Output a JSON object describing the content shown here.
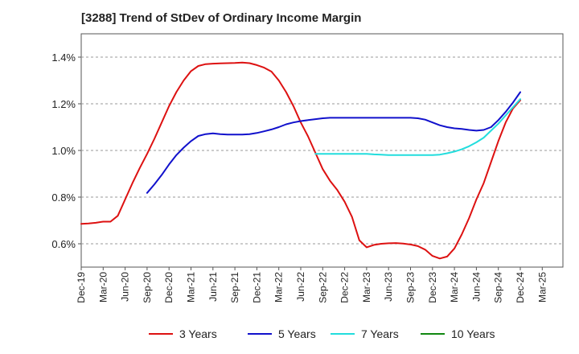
{
  "chart_data": {
    "type": "line",
    "title": "[3288]  Trend of StDev of Ordinary Income Margin",
    "xlabel": "",
    "ylabel": "",
    "x_ticks": [
      "Dec-19",
      "Mar-20",
      "Jun-20",
      "Sep-20",
      "Dec-20",
      "Mar-21",
      "Jun-21",
      "Sep-21",
      "Dec-21",
      "Mar-22",
      "Jun-22",
      "Sep-22",
      "Dec-22",
      "Mar-23",
      "Jun-23",
      "Sep-23",
      "Dec-23",
      "Mar-24",
      "Jun-24",
      "Sep-24",
      "Dec-24",
      "Mar-25"
    ],
    "y_ticks": [
      {
        "value": 0.6,
        "label": "0.6%"
      },
      {
        "value": 0.8,
        "label": "0.8%"
      },
      {
        "value": 1.0,
        "label": "1.0%"
      },
      {
        "value": 1.2,
        "label": "1.2%"
      },
      {
        "value": 1.4,
        "label": "1.4%"
      }
    ],
    "ylim": [
      0.5,
      1.5
    ],
    "grid": "horizontal dashed",
    "legend_position": "bottom",
    "series": [
      {
        "name": "3 Years",
        "color": "#dd1111",
        "x": [
          "2019-12",
          "2020-01",
          "2020-02",
          "2020-03",
          "2020-04",
          "2020-05",
          "2020-06",
          "2020-07",
          "2020-08",
          "2020-09",
          "2020-10",
          "2020-11",
          "2020-12",
          "2021-01",
          "2021-02",
          "2021-03",
          "2021-04",
          "2021-05",
          "2021-06",
          "2021-07",
          "2021-08",
          "2021-09",
          "2021-10",
          "2021-11",
          "2021-12",
          "2022-01",
          "2022-02",
          "2022-03",
          "2022-04",
          "2022-05",
          "2022-06",
          "2022-07",
          "2022-08",
          "2022-09",
          "2022-10",
          "2022-11",
          "2022-12",
          "2023-01",
          "2023-02",
          "2023-03",
          "2023-04",
          "2023-05",
          "2023-06",
          "2023-07",
          "2023-08",
          "2023-09",
          "2023-10",
          "2023-11",
          "2023-12",
          "2024-01",
          "2024-02",
          "2024-03",
          "2024-04",
          "2024-05",
          "2024-06",
          "2024-07",
          "2024-08",
          "2024-09",
          "2024-10",
          "2024-11",
          "2024-12"
        ],
        "values": [
          0.685,
          0.687,
          0.69,
          0.695,
          0.695,
          0.72,
          0.79,
          0.86,
          0.925,
          0.985,
          1.05,
          1.12,
          1.19,
          1.25,
          1.3,
          1.34,
          1.362,
          1.37,
          1.372,
          1.373,
          1.374,
          1.375,
          1.377,
          1.374,
          1.366,
          1.355,
          1.338,
          1.3,
          1.25,
          1.19,
          1.12,
          1.06,
          0.99,
          0.92,
          0.87,
          0.83,
          0.78,
          0.715,
          0.615,
          0.585,
          0.595,
          0.6,
          0.602,
          0.603,
          0.601,
          0.597,
          0.59,
          0.575,
          0.548,
          0.537,
          0.545,
          0.58,
          0.64,
          0.71,
          0.79,
          0.86,
          0.95,
          1.04,
          1.12,
          1.18,
          1.215
        ]
      },
      {
        "name": "5 Years",
        "color": "#1111cc",
        "x": [
          "2020-09",
          "2020-10",
          "2020-11",
          "2020-12",
          "2021-01",
          "2021-02",
          "2021-03",
          "2021-04",
          "2021-05",
          "2021-06",
          "2021-07",
          "2021-08",
          "2021-09",
          "2021-10",
          "2021-11",
          "2021-12",
          "2022-01",
          "2022-02",
          "2022-03",
          "2022-04",
          "2022-05",
          "2022-06",
          "2022-07",
          "2022-08",
          "2022-09",
          "2022-10",
          "2022-11",
          "2022-12",
          "2023-01",
          "2023-02",
          "2023-03",
          "2023-04",
          "2023-05",
          "2023-06",
          "2023-07",
          "2023-08",
          "2023-09",
          "2023-10",
          "2023-11",
          "2023-12",
          "2024-01",
          "2024-02",
          "2024-03",
          "2024-04",
          "2024-05",
          "2024-06",
          "2024-07",
          "2024-08",
          "2024-09",
          "2024-10",
          "2024-11",
          "2024-12"
        ],
        "values": [
          0.818,
          0.855,
          0.895,
          0.94,
          0.98,
          1.012,
          1.04,
          1.062,
          1.07,
          1.073,
          1.07,
          1.068,
          1.068,
          1.068,
          1.07,
          1.075,
          1.082,
          1.09,
          1.1,
          1.112,
          1.12,
          1.126,
          1.13,
          1.134,
          1.138,
          1.14,
          1.14,
          1.14,
          1.14,
          1.14,
          1.14,
          1.14,
          1.14,
          1.14,
          1.14,
          1.14,
          1.14,
          1.138,
          1.132,
          1.12,
          1.108,
          1.1,
          1.095,
          1.092,
          1.088,
          1.085,
          1.088,
          1.1,
          1.13,
          1.165,
          1.205,
          1.25
        ]
      },
      {
        "name": "7 Years",
        "color": "#22dddd",
        "x": [
          "2022-08",
          "2022-09",
          "2022-10",
          "2022-11",
          "2022-12",
          "2023-01",
          "2023-02",
          "2023-03",
          "2023-04",
          "2023-05",
          "2023-06",
          "2023-07",
          "2023-08",
          "2023-09",
          "2023-10",
          "2023-11",
          "2023-12",
          "2024-01",
          "2024-02",
          "2024-03",
          "2024-04",
          "2024-05",
          "2024-06",
          "2024-07",
          "2024-08",
          "2024-09",
          "2024-10",
          "2024-11",
          "2024-12"
        ],
        "values": [
          0.985,
          0.985,
          0.985,
          0.985,
          0.985,
          0.985,
          0.985,
          0.985,
          0.983,
          0.982,
          0.98,
          0.98,
          0.98,
          0.98,
          0.98,
          0.98,
          0.98,
          0.982,
          0.988,
          0.995,
          1.005,
          1.018,
          1.035,
          1.055,
          1.085,
          1.115,
          1.15,
          1.185,
          1.22
        ]
      },
      {
        "name": "10 Years",
        "color": "#118811",
        "x": [],
        "values": []
      }
    ]
  }
}
